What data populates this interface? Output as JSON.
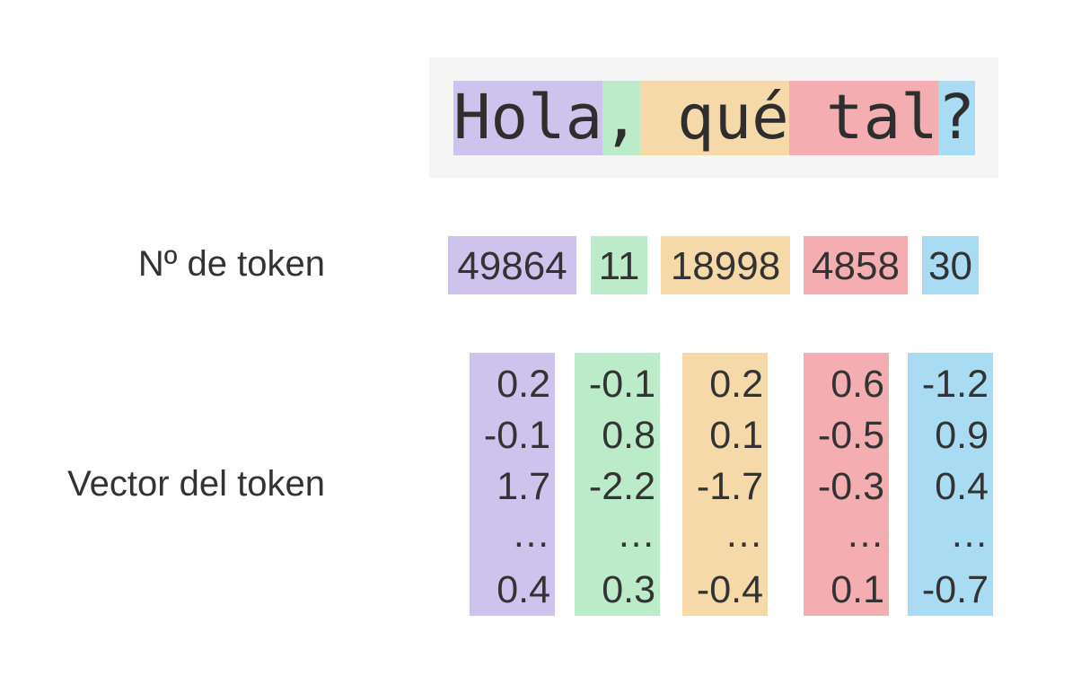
{
  "sentence": {
    "tokens": [
      {
        "text": "Hola",
        "color": "#cec3ec"
      },
      {
        "text": ",",
        "color": "#bcebca"
      },
      {
        "text": " qué",
        "color": "#f5d9a9"
      },
      {
        "text": " tal",
        "color": "#f4aeb1"
      },
      {
        "text": "?",
        "color": "#a9dcf2"
      }
    ]
  },
  "token_ids": {
    "label": "Nº de token",
    "values": [
      49864,
      11,
      18998,
      4858,
      30
    ]
  },
  "vectors": {
    "label": "Vector del token",
    "ellipsis": "…",
    "columns": [
      {
        "head": [
          0.2,
          -0.1,
          1.7
        ],
        "tail": 0.4
      },
      {
        "head": [
          -0.1,
          0.8,
          -2.2
        ],
        "tail": 0.3
      },
      {
        "head": [
          0.2,
          0.1,
          -1.7
        ],
        "tail": -0.4
      },
      {
        "head": [
          0.6,
          -0.5,
          -0.3
        ],
        "tail": 0.1
      },
      {
        "head": [
          -1.2,
          0.9,
          0.4
        ],
        "tail": -0.7
      }
    ]
  }
}
